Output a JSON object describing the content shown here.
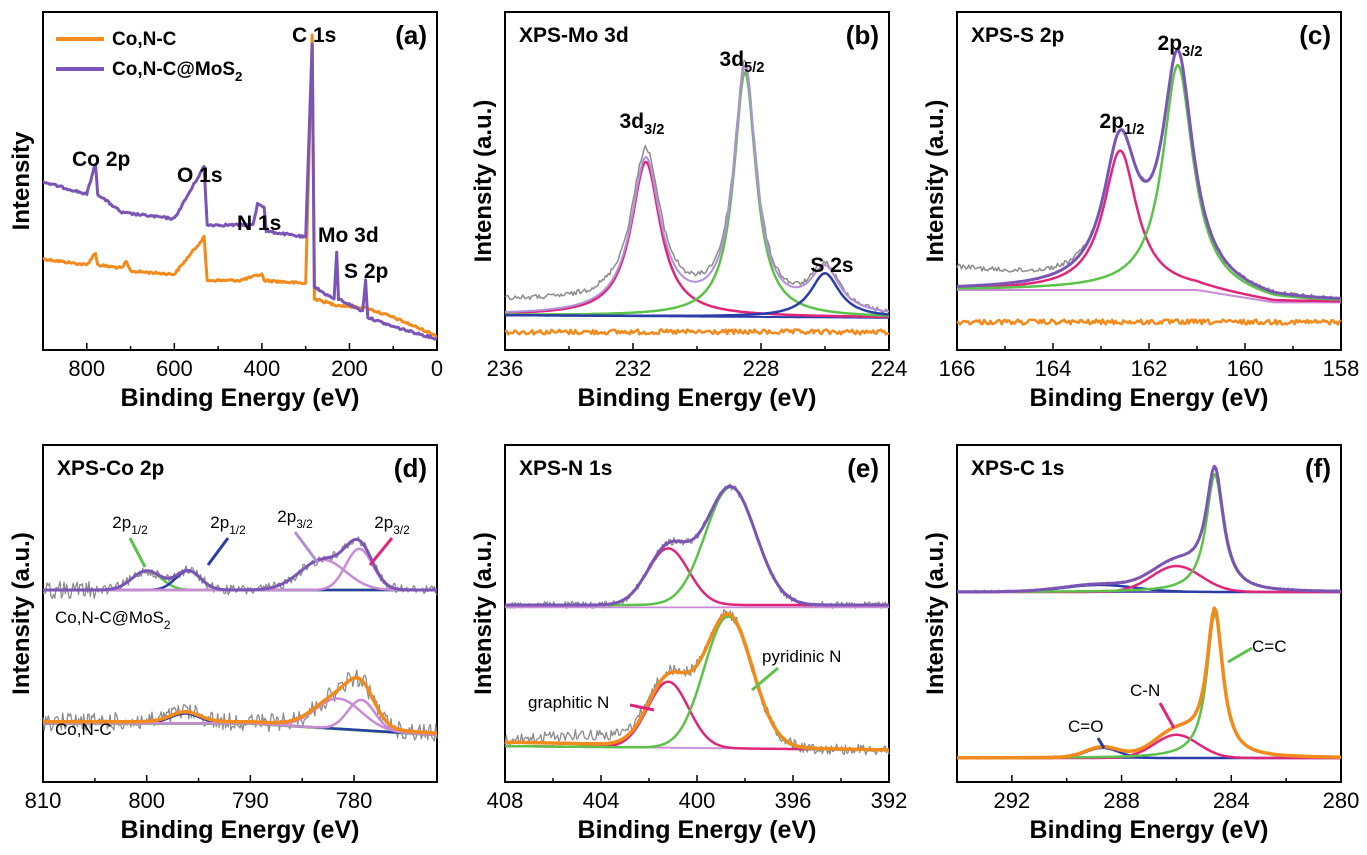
{
  "colors": {
    "co_nc": "#f28a1c",
    "co_nc_mos2": "#7a55b5",
    "raw": "#8c8c8c",
    "pink": "#e0267a",
    "green": "#5cc24a",
    "blue": "#2a3da8",
    "lilac": "#c98ad6",
    "lavender": "#b48fd9",
    "baseline": "#4a4ab0"
  },
  "ylabel_text": "Intensity (a.u.)",
  "ylabel_text_a": "Intensity",
  "xlabel_text": "Binding Energy (eV)",
  "panels": {
    "a": {
      "label": "(a)",
      "xticks": [
        "800",
        "600",
        "400",
        "200",
        "0"
      ],
      "legend": [
        {
          "name": "Co,N-C",
          "sub": ""
        },
        {
          "name": "Co,N-C@MoS",
          "sub": "2"
        }
      ],
      "peaks": [
        "Co 2p",
        "O 1s",
        "N 1s",
        "C 1s",
        "Mo 3d",
        "S 2p"
      ]
    },
    "b": {
      "label": "(b)",
      "title": "XPS-Mo 3d",
      "xticks": [
        "236",
        "232",
        "228",
        "224"
      ],
      "peaks": [
        {
          "t": "3d",
          "s": "3/2"
        },
        {
          "t": "3d",
          "s": "5/2"
        },
        {
          "t": "S 2s",
          "s": ""
        }
      ]
    },
    "c": {
      "label": "(c)",
      "title": "XPS-S 2p",
      "xticks": [
        "166",
        "164",
        "162",
        "160",
        "158"
      ],
      "peaks": [
        {
          "t": "2p",
          "s": "1/2"
        },
        {
          "t": "2p",
          "s": "3/2"
        }
      ]
    },
    "d": {
      "label": "(d)",
      "title": "XPS-Co 2p",
      "xticks": [
        "810",
        "800",
        "790",
        "780"
      ],
      "peaks": [
        {
          "t": "2p",
          "s": "1/2"
        },
        {
          "t": "2p",
          "s": "1/2"
        },
        {
          "t": "2p",
          "s": "3/2"
        },
        {
          "t": "2p",
          "s": "3/2"
        }
      ],
      "samples": [
        {
          "t": "Co,N-C@MoS",
          "s": "2"
        },
        {
          "t": "Co,N-C",
          "s": ""
        }
      ]
    },
    "e": {
      "label": "(e)",
      "title": "XPS-N 1s",
      "xticks": [
        "408",
        "404",
        "400",
        "396",
        "392"
      ],
      "peaks": [
        "graphitic N",
        "pyridinic N"
      ]
    },
    "f": {
      "label": "(f)",
      "title": "XPS-C 1s",
      "xticks": [
        "292",
        "288",
        "284",
        "280"
      ],
      "peaks": [
        "C=O",
        "C-N",
        "C=C"
      ]
    }
  },
  "chart_data": [
    {
      "panel": "a",
      "type": "line",
      "xlim": [
        900,
        0
      ],
      "xlabel": "Binding Energy (eV)",
      "ylabel": "Intensity",
      "series": [
        {
          "name": "Co,N-C",
          "points": [
            [
              900,
              0.27
            ],
            [
              850,
              0.26
            ],
            [
              800,
              0.25
            ],
            [
              780,
              0.29
            ],
            [
              775,
              0.25
            ],
            [
              720,
              0.24
            ],
            [
              710,
              0.26
            ],
            [
              700,
              0.23
            ],
            [
              600,
              0.22
            ],
            [
              532,
              0.34
            ],
            [
              525,
              0.2
            ],
            [
              450,
              0.2
            ],
            [
              400,
              0.22
            ],
            [
              395,
              0.2
            ],
            [
              300,
              0.19
            ],
            [
              285,
              1.0
            ],
            [
              280,
              0.14
            ],
            [
              230,
              0.12
            ],
            [
              160,
              0.11
            ],
            [
              100,
              0.08
            ],
            [
              0,
              0.02
            ]
          ]
        },
        {
          "name": "Co,N-C@MoS2",
          "points": [
            [
              900,
              0.52
            ],
            [
              850,
              0.5
            ],
            [
              800,
              0.48
            ],
            [
              780,
              0.58
            ],
            [
              775,
              0.48
            ],
            [
              720,
              0.42
            ],
            [
              600,
              0.4
            ],
            [
              532,
              0.57
            ],
            [
              525,
              0.38
            ],
            [
              420,
              0.38
            ],
            [
              410,
              0.45
            ],
            [
              395,
              0.44
            ],
            [
              390,
              0.36
            ],
            [
              300,
              0.34
            ],
            [
              285,
              0.97
            ],
            [
              280,
              0.18
            ],
            [
              260,
              0.16
            ],
            [
              235,
              0.14
            ],
            [
              229,
              0.29
            ],
            [
              225,
              0.14
            ],
            [
              170,
              0.1
            ],
            [
              163,
              0.2
            ],
            [
              158,
              0.08
            ],
            [
              100,
              0.05
            ],
            [
              0,
              0.01
            ]
          ]
        }
      ]
    },
    {
      "panel": "b",
      "type": "line",
      "xlim": [
        236,
        224
      ],
      "xlabel": "Binding Energy (eV)",
      "ylabel": "Intensity (a.u.)",
      "series": [
        {
          "name": "",
          "peak_centers": [
            231.6,
            228.5,
            226.0
          ],
          "relative_heights": [
            0.66,
            1.0,
            0.18
          ]
        }
      ]
    },
    {
      "panel": "c",
      "type": "line",
      "xlim": [
        166,
        158
      ],
      "xlabel": "Binding Energy (eV)",
      "ylabel": "Intensity (a.u.)",
      "series": [
        {
          "name": "",
          "peak_centers": [
            162.6,
            161.4
          ],
          "relative_heights": [
            0.62,
            1.0
          ]
        }
      ]
    },
    {
      "panel": "d",
      "type": "line",
      "xlim": [
        810,
        772
      ],
      "xlabel": "Binding Energy (eV)",
      "ylabel": "Intensity (a.u.)",
      "series": [
        {
          "name": "Co,N-C@MoS2",
          "peak_centers": [
            800.0,
            796.0,
            783.0,
            779.5
          ]
        },
        {
          "name": "Co,N-C",
          "peak_centers": [
            796.3,
            781.5,
            779.3
          ]
        }
      ]
    },
    {
      "panel": "e",
      "type": "line",
      "xlim": [
        408,
        392
      ],
      "xlabel": "Binding Energy (eV)",
      "ylabel": "Intensity (a.u.)",
      "series": [
        {
          "name": "",
          "peak_centers": [
            401.2,
            398.6
          ]
        }
      ]
    },
    {
      "panel": "f",
      "type": "line",
      "xlim": [
        294,
        280
      ],
      "xlabel": "Binding Energy (eV)",
      "ylabel": "Intensity (a.u.)",
      "series": [
        {
          "name": "",
          "peak_centers": [
            288.7,
            286.0,
            284.6
          ]
        }
      ]
    }
  ]
}
